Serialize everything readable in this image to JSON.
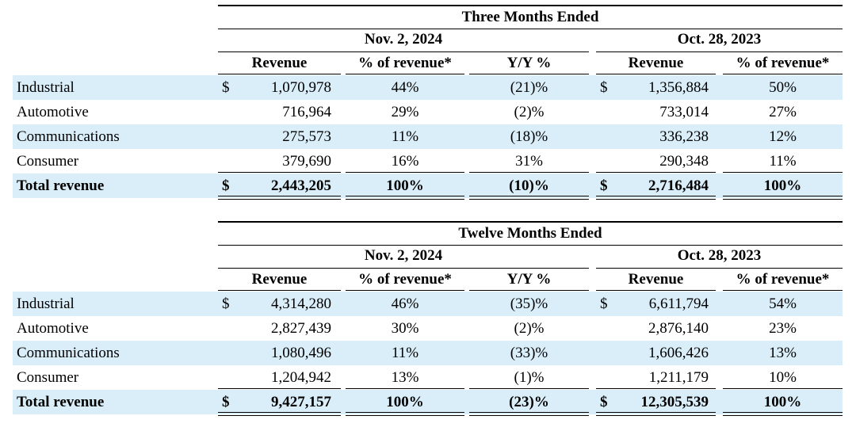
{
  "tables": [
    {
      "period_title": "Three Months Ended",
      "col_groups": [
        "Nov. 2, 2024",
        "Oct. 28, 2023"
      ],
      "columns": [
        "Revenue",
        "% of revenue*",
        "Y/Y %",
        "Revenue",
        "% of revenue*"
      ],
      "currency_symbol": "$",
      "rows": [
        {
          "label": "Industrial",
          "rev_cur": "1,070,978",
          "pct_cur": "44%",
          "yy": "(21)%",
          "rev_prev": "1,356,884",
          "pct_prev": "50%"
        },
        {
          "label": "Automotive",
          "rev_cur": "716,964",
          "pct_cur": "29%",
          "yy": "(2)%",
          "rev_prev": "733,014",
          "pct_prev": "27%"
        },
        {
          "label": "Communications",
          "rev_cur": "275,573",
          "pct_cur": "11%",
          "yy": "(18)%",
          "rev_prev": "336,238",
          "pct_prev": "12%"
        },
        {
          "label": "Consumer",
          "rev_cur": "379,690",
          "pct_cur": "16%",
          "yy": "31%",
          "rev_prev": "290,348",
          "pct_prev": "11%"
        }
      ],
      "total": {
        "label": "Total revenue",
        "rev_cur": "2,443,205",
        "pct_cur": "100%",
        "yy": "(10)%",
        "rev_prev": "2,716,484",
        "pct_prev": "100%"
      }
    },
    {
      "period_title": "Twelve Months Ended",
      "col_groups": [
        "Nov. 2, 2024",
        "Oct. 28, 2023"
      ],
      "columns": [
        "Revenue",
        "% of revenue*",
        "Y/Y %",
        "Revenue",
        "% of revenue*"
      ],
      "currency_symbol": "$",
      "rows": [
        {
          "label": "Industrial",
          "rev_cur": "4,314,280",
          "pct_cur": "46%",
          "yy": "(35)%",
          "rev_prev": "6,611,794",
          "pct_prev": "54%"
        },
        {
          "label": "Automotive",
          "rev_cur": "2,827,439",
          "pct_cur": "30%",
          "yy": "(2)%",
          "rev_prev": "2,876,140",
          "pct_prev": "23%"
        },
        {
          "label": "Communications",
          "rev_cur": "1,080,496",
          "pct_cur": "11%",
          "yy": "(33)%",
          "rev_prev": "1,606,426",
          "pct_prev": "13%"
        },
        {
          "label": "Consumer",
          "rev_cur": "1,204,942",
          "pct_cur": "13%",
          "yy": "(1)%",
          "rev_prev": "1,211,179",
          "pct_prev": "10%"
        }
      ],
      "total": {
        "label": "Total revenue",
        "rev_cur": "9,427,157",
        "pct_cur": "100%",
        "yy": "(23)%",
        "rev_prev": "12,305,539",
        "pct_prev": "100%"
      }
    }
  ],
  "colors": {
    "band": "#daeef9",
    "rule": "#000000"
  }
}
